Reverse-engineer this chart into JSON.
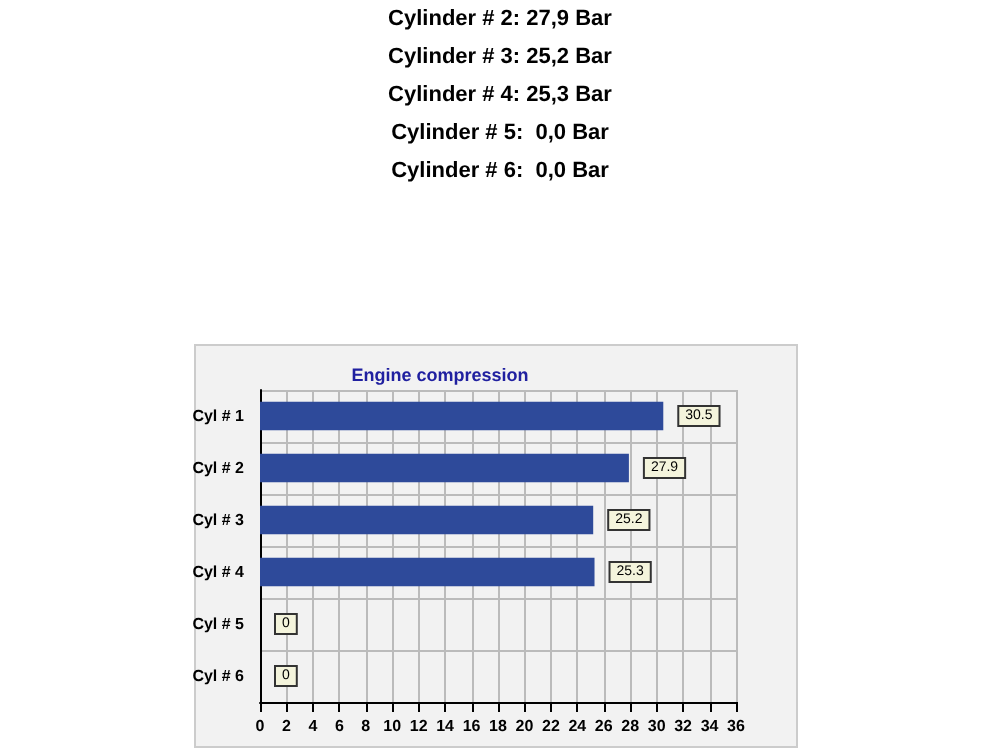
{
  "chart_data": {
    "type": "bar",
    "orientation": "horizontal",
    "title": "Engine compression",
    "annotations": [
      "Cylinder # 2: 27,9 Bar",
      "Cylinder # 3: 25,2 Bar",
      "Cylinder # 4: 25,3 Bar",
      "Cylinder # 5:  0,0 Bar",
      "Cylinder # 6:  0,0 Bar"
    ],
    "categories": [
      "Cyl # 1",
      "Cyl # 2",
      "Cyl # 3",
      "Cyl # 4",
      "Cyl # 5",
      "Cyl # 6"
    ],
    "values": [
      30.5,
      27.9,
      25.2,
      25.3,
      0,
      0
    ],
    "color": "#2e4a9a",
    "data_labels": true,
    "xlim": [
      0,
      36
    ],
    "xticks": [
      0,
      2,
      4,
      6,
      8,
      10,
      12,
      14,
      16,
      18,
      20,
      22,
      24,
      26,
      28,
      30,
      32,
      34,
      36
    ],
    "grid": true
  }
}
